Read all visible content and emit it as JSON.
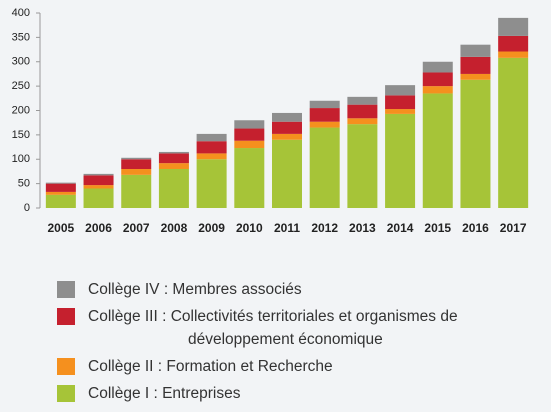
{
  "chart_data": {
    "type": "stacked_bar",
    "categories": [
      "2005",
      "2006",
      "2007",
      "2008",
      "2009",
      "2010",
      "2011",
      "2012",
      "2013",
      "2014",
      "2015",
      "2016",
      "2017"
    ],
    "series": [
      {
        "name": "Collège I : Entreprises",
        "color": "#a6c438",
        "values": [
          27,
          40,
          68,
          80,
          100,
          123,
          140,
          165,
          172,
          193,
          235,
          263,
          308
        ]
      },
      {
        "name": "Collège II : Formation et Recherche",
        "color": "#f5901e",
        "values": [
          6,
          7,
          12,
          12,
          12,
          15,
          12,
          12,
          12,
          10,
          15,
          12,
          13
        ]
      },
      {
        "name": "Collège III : Collectivités territoriales et organismes de développement économique",
        "color": "#c5202e",
        "values": [
          17,
          20,
          20,
          20,
          25,
          25,
          25,
          28,
          28,
          28,
          28,
          35,
          32
        ]
      },
      {
        "name": "Collège IV : Membres associés",
        "color": "#8e8e8e",
        "values": [
          2,
          3,
          3,
          3,
          15,
          17,
          18,
          15,
          16,
          21,
          22,
          25,
          37
        ]
      }
    ],
    "ylim": [
      0,
      400
    ],
    "yticks": [
      0,
      50,
      100,
      150,
      200,
      250,
      300,
      350,
      400
    ],
    "grid": false,
    "legend": "bottom"
  }
}
